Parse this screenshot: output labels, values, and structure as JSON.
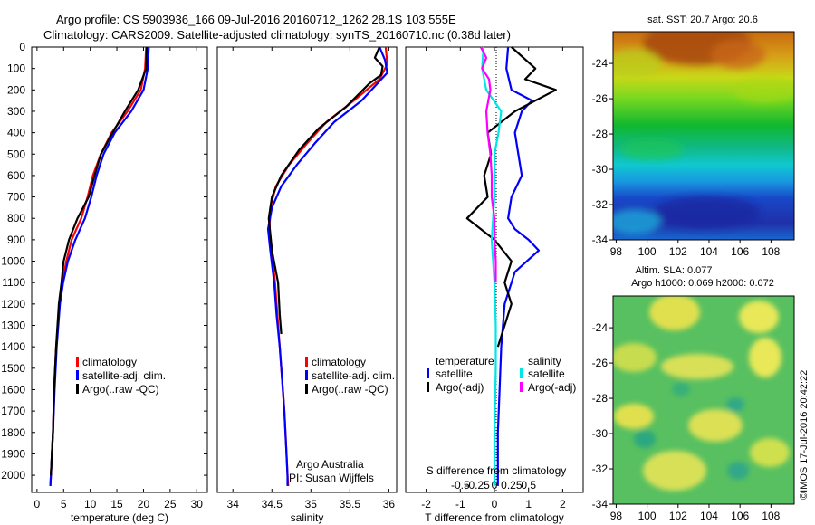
{
  "header": {
    "line1": "Argo profile: CS 5903936_166 09-Jul-2016 20160712_1262 28.1S 103.555E",
    "line2": "Climatology: CARS2009. Satellite-adjusted climatology: synTS_20160710.nc (0.38d later)"
  },
  "colors": {
    "climatology": "#ff0000",
    "satellite": "#0000ff",
    "argo": "#000000",
    "salinity_satellite": "#00e5e5",
    "salinity_argo": "#ff00ff"
  },
  "chart_data": [
    {
      "id": "temperature",
      "type": "line",
      "xlabel": "temperature (deg C)",
      "xlim": [
        -1,
        32
      ],
      "ylim": [
        2080,
        0
      ],
      "y_reversed": true,
      "xticks": [
        0,
        5,
        10,
        15,
        20,
        25,
        30
      ],
      "yticks": [
        0,
        100,
        200,
        300,
        400,
        500,
        600,
        700,
        800,
        900,
        1000,
        1100,
        1200,
        1300,
        1400,
        1500,
        1600,
        1700,
        1800,
        1900,
        2000
      ],
      "legend": {
        "position": "lower-middle",
        "entries": [
          "climatology",
          "satellite-adj. clim.",
          "Argo(..raw -QC)"
        ]
      },
      "series": [
        {
          "name": "climatology",
          "color": "#ff0000",
          "x": [
            20.5,
            20.3,
            19.5,
            17.0,
            14.0,
            12.0,
            10.5,
            9.5,
            8.3,
            6.5,
            5.5,
            4.8,
            4.2,
            3.6,
            3.2,
            3.0,
            2.8,
            2.6,
            2.5
          ],
          "y": [
            0,
            100,
            200,
            300,
            400,
            500,
            600,
            700,
            800,
            900,
            1000,
            1100,
            1200,
            1400,
            1600,
            1800,
            1900,
            2000,
            2050
          ]
        },
        {
          "name": "satellite-adj. clim.",
          "color": "#0000ff",
          "x": [
            21.0,
            20.8,
            20.0,
            17.7,
            14.6,
            12.5,
            11.2,
            10.2,
            9.0,
            7.2,
            5.8,
            4.9,
            4.3,
            3.7,
            3.3,
            3.0,
            2.8,
            2.6,
            2.5
          ],
          "y": [
            0,
            100,
            200,
            300,
            400,
            500,
            600,
            700,
            800,
            900,
            1000,
            1100,
            1200,
            1400,
            1600,
            1800,
            1900,
            2000,
            2050
          ]
        },
        {
          "name": "Argo(..raw -QC)",
          "color": "#000000",
          "x": [
            20.6,
            20.5,
            19.0,
            16.5,
            14.2,
            12.0,
            10.8,
            9.7,
            7.6,
            6.0,
            5.0,
            4.6,
            4.1,
            3.6,
            3.2,
            3.0,
            2.8,
            2.6
          ],
          "y": [
            0,
            100,
            200,
            300,
            400,
            500,
            600,
            700,
            800,
            900,
            1000,
            1100,
            1200,
            1400,
            1600,
            1800,
            1900,
            2000
          ]
        }
      ]
    },
    {
      "id": "salinity",
      "type": "line",
      "xlabel": "salinity",
      "xlim": [
        33.8,
        36.1
      ],
      "ylim": [
        2080,
        0
      ],
      "y_reversed": true,
      "xticks": [
        34,
        34.5,
        35,
        35.5,
        36
      ],
      "xtick_labels": [
        "34",
        "34.5",
        "35",
        "35.5",
        "36"
      ],
      "legend": {
        "position": "lower-right",
        "entries": [
          "climatology",
          "satellite-adj. clim.",
          "Argo(..raw -QC)"
        ]
      },
      "series": [
        {
          "name": "climatology",
          "color": "#ff0000",
          "x": [
            35.96,
            35.98,
            35.88,
            35.55,
            35.2,
            34.95,
            34.72,
            34.55,
            34.48,
            34.47,
            34.5,
            34.54,
            34.57,
            34.6,
            34.63,
            34.66,
            34.68,
            34.7,
            34.71
          ],
          "y": [
            0,
            80,
            150,
            250,
            350,
            450,
            550,
            650,
            750,
            850,
            950,
            1100,
            1250,
            1400,
            1550,
            1700,
            1850,
            2000,
            2050
          ]
        },
        {
          "name": "satellite-adj. clim.",
          "color": "#0000ff",
          "x": [
            35.88,
            35.95,
            35.98,
            35.65,
            35.3,
            35.05,
            34.82,
            34.62,
            34.5,
            34.45,
            34.48,
            34.53,
            34.56,
            34.6,
            34.63,
            34.66,
            34.68,
            34.7,
            34.7
          ],
          "y": [
            0,
            60,
            120,
            250,
            350,
            450,
            550,
            650,
            750,
            850,
            950,
            1100,
            1250,
            1400,
            1550,
            1700,
            1850,
            2000,
            2050
          ]
        },
        {
          "name": "Argo(..raw -QC)",
          "color": "#000000",
          "x": [
            35.88,
            35.82,
            35.92,
            35.9,
            35.75,
            35.45,
            35.1,
            34.85,
            34.62,
            34.5,
            34.46,
            34.5,
            34.58,
            34.6,
            34.62
          ],
          "y": [
            0,
            50,
            90,
            130,
            170,
            280,
            380,
            480,
            600,
            700,
            800,
            950,
            1100,
            1250,
            1340
          ]
        }
      ],
      "credit": {
        "line1": "Argo Australia",
        "line2": "PI: Susan Wijffels"
      }
    },
    {
      "id": "difference",
      "type": "line",
      "xlabel": "T difference from climatology",
      "top_axis_label": "S difference from climatology",
      "xlim": [
        -2.6,
        2.6
      ],
      "ylim": [
        2080,
        0
      ],
      "y_reversed": true,
      "xticks": [
        -2,
        -1,
        0,
        1,
        2
      ],
      "top_ticks": [
        "-0.5",
        "-0.25",
        "0",
        "0.25",
        "0.5"
      ],
      "legend": {
        "position": "lower-middle",
        "group_titles": [
          "temperature",
          "salinity"
        ],
        "entries": [
          "satellite",
          "Argo(-adj)",
          "satellite",
          "Argo(-adj)"
        ]
      },
      "series": [
        {
          "name": "temperature satellite",
          "color": "#0000ff",
          "x": [
            0.4,
            0.35,
            0.5,
            1.1,
            0.8,
            0.6,
            0.7,
            0.8,
            0.5,
            0.4,
            0.6,
            1.0,
            1.3,
            0.6,
            0.3,
            0.2,
            0.15,
            0.1,
            0.1
          ],
          "y": [
            0,
            100,
            200,
            250,
            300,
            400,
            500,
            600,
            700,
            800,
            850,
            900,
            950,
            1050,
            1200,
            1400,
            1600,
            1800,
            2050
          ]
        },
        {
          "name": "temperature Argo(-adj)",
          "color": "#000000",
          "x": [
            0.5,
            1.2,
            0.9,
            1.8,
            0.6,
            -0.2,
            -0.1,
            -0.3,
            -0.2,
            -0.8,
            0.0,
            0.5,
            0.3,
            0.5,
            0.3,
            0.1
          ],
          "y": [
            0,
            100,
            150,
            200,
            300,
            400,
            500,
            600,
            700,
            800,
            900,
            1000,
            1100,
            1200,
            1300,
            1400
          ]
        },
        {
          "name": "salinity satellite",
          "color": "#00e5e5",
          "x": [
            -0.08,
            -0.09,
            -0.06,
            0.05,
            0.03,
            0.0,
            0.0,
            -0.02,
            0.0,
            0.01,
            0.01,
            0.0,
            0.0
          ],
          "y": [
            0,
            100,
            200,
            300,
            400,
            500,
            700,
            900,
            1100,
            1300,
            1500,
            1800,
            2050
          ]
        },
        {
          "name": "salinity Argo(-adj)",
          "color": "#ff00ff",
          "x": [
            -0.1,
            -0.06,
            -0.09,
            -0.04,
            -0.03,
            -0.06,
            -0.05,
            -0.03,
            -0.02,
            -0.02,
            0.0,
            0.0,
            0.01,
            0.01
          ],
          "y": [
            0,
            50,
            100,
            150,
            200,
            300,
            400,
            500,
            600,
            700,
            800,
            900,
            1000,
            1100
          ]
        }
      ]
    },
    {
      "id": "sst_map",
      "type": "heatmap",
      "title": "sat. SST: 20.7  Argo: 20.6",
      "xlim": [
        97.8,
        109.5
      ],
      "ylim": [
        -34,
        -22.2
      ],
      "xticks": [
        98,
        100,
        102,
        104,
        106,
        108
      ],
      "yticks": [
        -24,
        -26,
        -28,
        -30,
        -32,
        -34
      ]
    },
    {
      "id": "sla_map",
      "type": "heatmap",
      "title": "Altim. SLA: 0.077",
      "subtitle": "Argo h1000: 0.069 h2000: 0.072",
      "xlim": [
        97.8,
        109.5
      ],
      "ylim": [
        -34,
        -22.2
      ],
      "xticks": [
        98,
        100,
        102,
        104,
        106,
        108
      ],
      "yticks": [
        -24,
        -26,
        -28,
        -30,
        -32,
        -34
      ]
    }
  ],
  "footer": {
    "stamp": "©IMOS 17-Jul-2016 20:42:22"
  }
}
